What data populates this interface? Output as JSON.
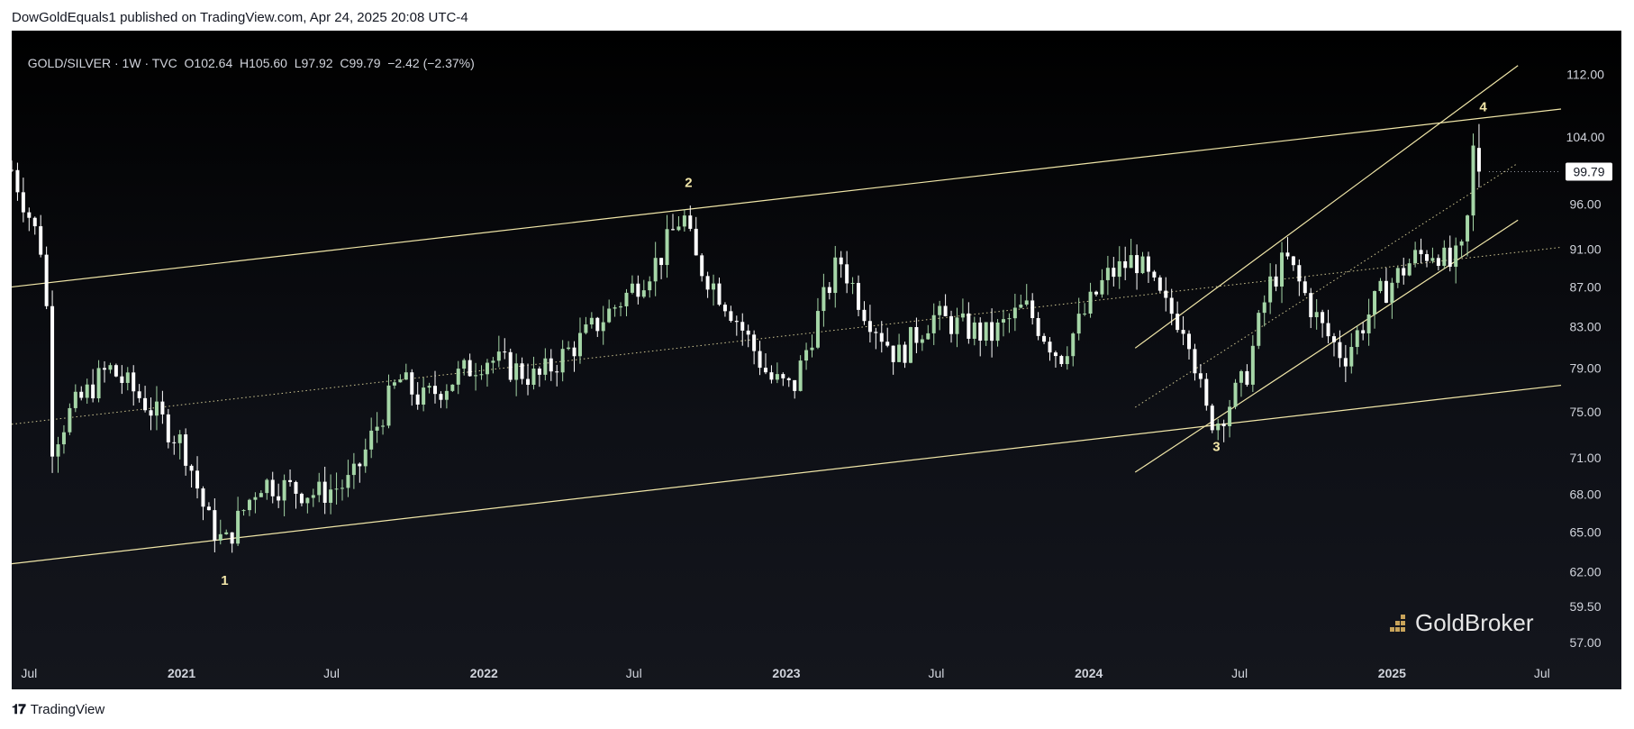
{
  "header": {
    "publisher": "DowGoldEquals1 published on TradingView.com, Apr 24, 2025 20:08 UTC-4"
  },
  "legend": {
    "symbol": "GOLD/SILVER · 1W · TVC",
    "ohlc": "O102.64  H105.60  L97.92  C99.79  −2.42 (−2.37%)"
  },
  "footer": {
    "logo": "𝟏𝟕",
    "label": "TradingView"
  },
  "brand": {
    "label": "GoldBroker"
  },
  "colors": {
    "up": "#a5d6a7",
    "down": "#ffffff",
    "channel": "#f0e6a8",
    "price_tag_bg": "#ffffff"
  },
  "chart_data": {
    "type": "candlestick",
    "title": "GOLD/SILVER · 1W · TVC",
    "price_axis": {
      "ticks": [
        57,
        59.5,
        62,
        65,
        68,
        71,
        75,
        79,
        83,
        87,
        91,
        96,
        104,
        112
      ],
      "tick_labels": [
        "57.00",
        "59.50",
        "62.00",
        "65.00",
        "68.00",
        "71.00",
        "75.00",
        "79.00",
        "83.00",
        "87.00",
        "91.00",
        "96.00",
        "104.00",
        "112.00"
      ],
      "scale": "log",
      "range": [
        55.5,
        118
      ]
    },
    "time_axis": {
      "labels": [
        "Jul",
        "2021",
        "Jul",
        "2022",
        "Jul",
        "2023",
        "Jul",
        "2024",
        "Jul",
        "2025",
        "Jul"
      ],
      "dates": [
        "2020-07-01",
        "2021-01-01",
        "2021-07-01",
        "2022-01-01",
        "2022-07-01",
        "2023-01-01",
        "2023-07-01",
        "2024-01-01",
        "2024-07-01",
        "2025-01-01",
        "2025-07-01"
      ],
      "bold": [
        false,
        true,
        false,
        true,
        false,
        true,
        false,
        true,
        false,
        true,
        false
      ],
      "range": [
        "2020-06-10",
        "2025-07-24"
      ]
    },
    "last_price": 99.79,
    "last_price_label": "99.79",
    "key_closes": [
      [
        "2020-06-10",
        100
      ],
      [
        "2020-07-20",
        90
      ],
      [
        "2020-07-27",
        72
      ],
      [
        "2020-08-20",
        75
      ],
      [
        "2020-10-05",
        79
      ],
      [
        "2020-11-16",
        76
      ],
      [
        "2021-01-04",
        72
      ],
      [
        "2021-02-01",
        66
      ],
      [
        "2021-02-22",
        64
      ],
      [
        "2021-04-05",
        69
      ],
      [
        "2021-06-14",
        68
      ],
      [
        "2021-07-26",
        69
      ],
      [
        "2021-09-20",
        78
      ],
      [
        "2021-10-18",
        76
      ],
      [
        "2022-01-03",
        80
      ],
      [
        "2022-03-07",
        78
      ],
      [
        "2022-05-02",
        82
      ],
      [
        "2022-06-20",
        86
      ],
      [
        "2022-08-01",
        90
      ],
      [
        "2022-08-29",
        95
      ],
      [
        "2022-09-12",
        90
      ],
      [
        "2022-10-24",
        85
      ],
      [
        "2022-12-12",
        78
      ],
      [
        "2023-01-09",
        77
      ],
      [
        "2023-03-06",
        90
      ],
      [
        "2023-04-03",
        85
      ],
      [
        "2023-05-15",
        80
      ],
      [
        "2023-06-26",
        84
      ],
      [
        "2023-09-04",
        82
      ],
      [
        "2023-10-16",
        85
      ],
      [
        "2023-11-27",
        80
      ],
      [
        "2024-01-22",
        88
      ],
      [
        "2024-02-26",
        90
      ],
      [
        "2024-04-01",
        85
      ],
      [
        "2024-04-29",
        83
      ],
      [
        "2024-05-20",
        75
      ],
      [
        "2024-06-03",
        74
      ],
      [
        "2024-07-08",
        78
      ],
      [
        "2024-08-05",
        87
      ],
      [
        "2024-08-26",
        90
      ],
      [
        "2024-10-07",
        83
      ],
      [
        "2024-11-04",
        80
      ],
      [
        "2024-12-16",
        86
      ],
      [
        "2025-01-27",
        90
      ],
      [
        "2025-02-24",
        91
      ],
      [
        "2025-03-10",
        89
      ],
      [
        "2025-03-31",
        91
      ],
      [
        "2025-04-07",
        102
      ],
      [
        "2025-04-14",
        103
      ],
      [
        "2025-04-21",
        99.79
      ]
    ],
    "pivots": [
      {
        "label": "1",
        "date": "2021-02-22",
        "price": 62.5,
        "position": "below"
      },
      {
        "label": "2",
        "date": "2022-09-05",
        "price": 96.5,
        "position": "above"
      },
      {
        "label": "3",
        "date": "2024-06-03",
        "price": 73.3,
        "position": "below"
      },
      {
        "label": "4",
        "date": "2025-04-21",
        "price": 105.6,
        "position": "above"
      }
    ],
    "trendlines": [
      {
        "name": "outer-upper",
        "from": [
          "2020-06-10",
          87
        ],
        "to": [
          "2025-07-24",
          107.5
        ],
        "style": "solid"
      },
      {
        "name": "outer-lower",
        "from": [
          "2020-06-10",
          62.6
        ],
        "to": [
          "2025-07-24",
          77.4
        ],
        "style": "solid"
      },
      {
        "name": "outer-mid",
        "from": [
          "2020-06-10",
          73.9
        ],
        "to": [
          "2025-07-24",
          91.2
        ],
        "style": "dotted"
      },
      {
        "name": "inner-upper",
        "from": [
          "2024-02-26",
          80.9
        ],
        "to": [
          "2025-06-02",
          113.2
        ],
        "style": "solid"
      },
      {
        "name": "inner-mid",
        "from": [
          "2024-02-26",
          75.4
        ],
        "to": [
          "2025-06-02",
          100.8
        ],
        "style": "dotted"
      },
      {
        "name": "inner-lower",
        "from": [
          "2024-02-26",
          69.8
        ],
        "to": [
          "2025-06-02",
          94.2
        ],
        "style": "solid"
      }
    ]
  }
}
